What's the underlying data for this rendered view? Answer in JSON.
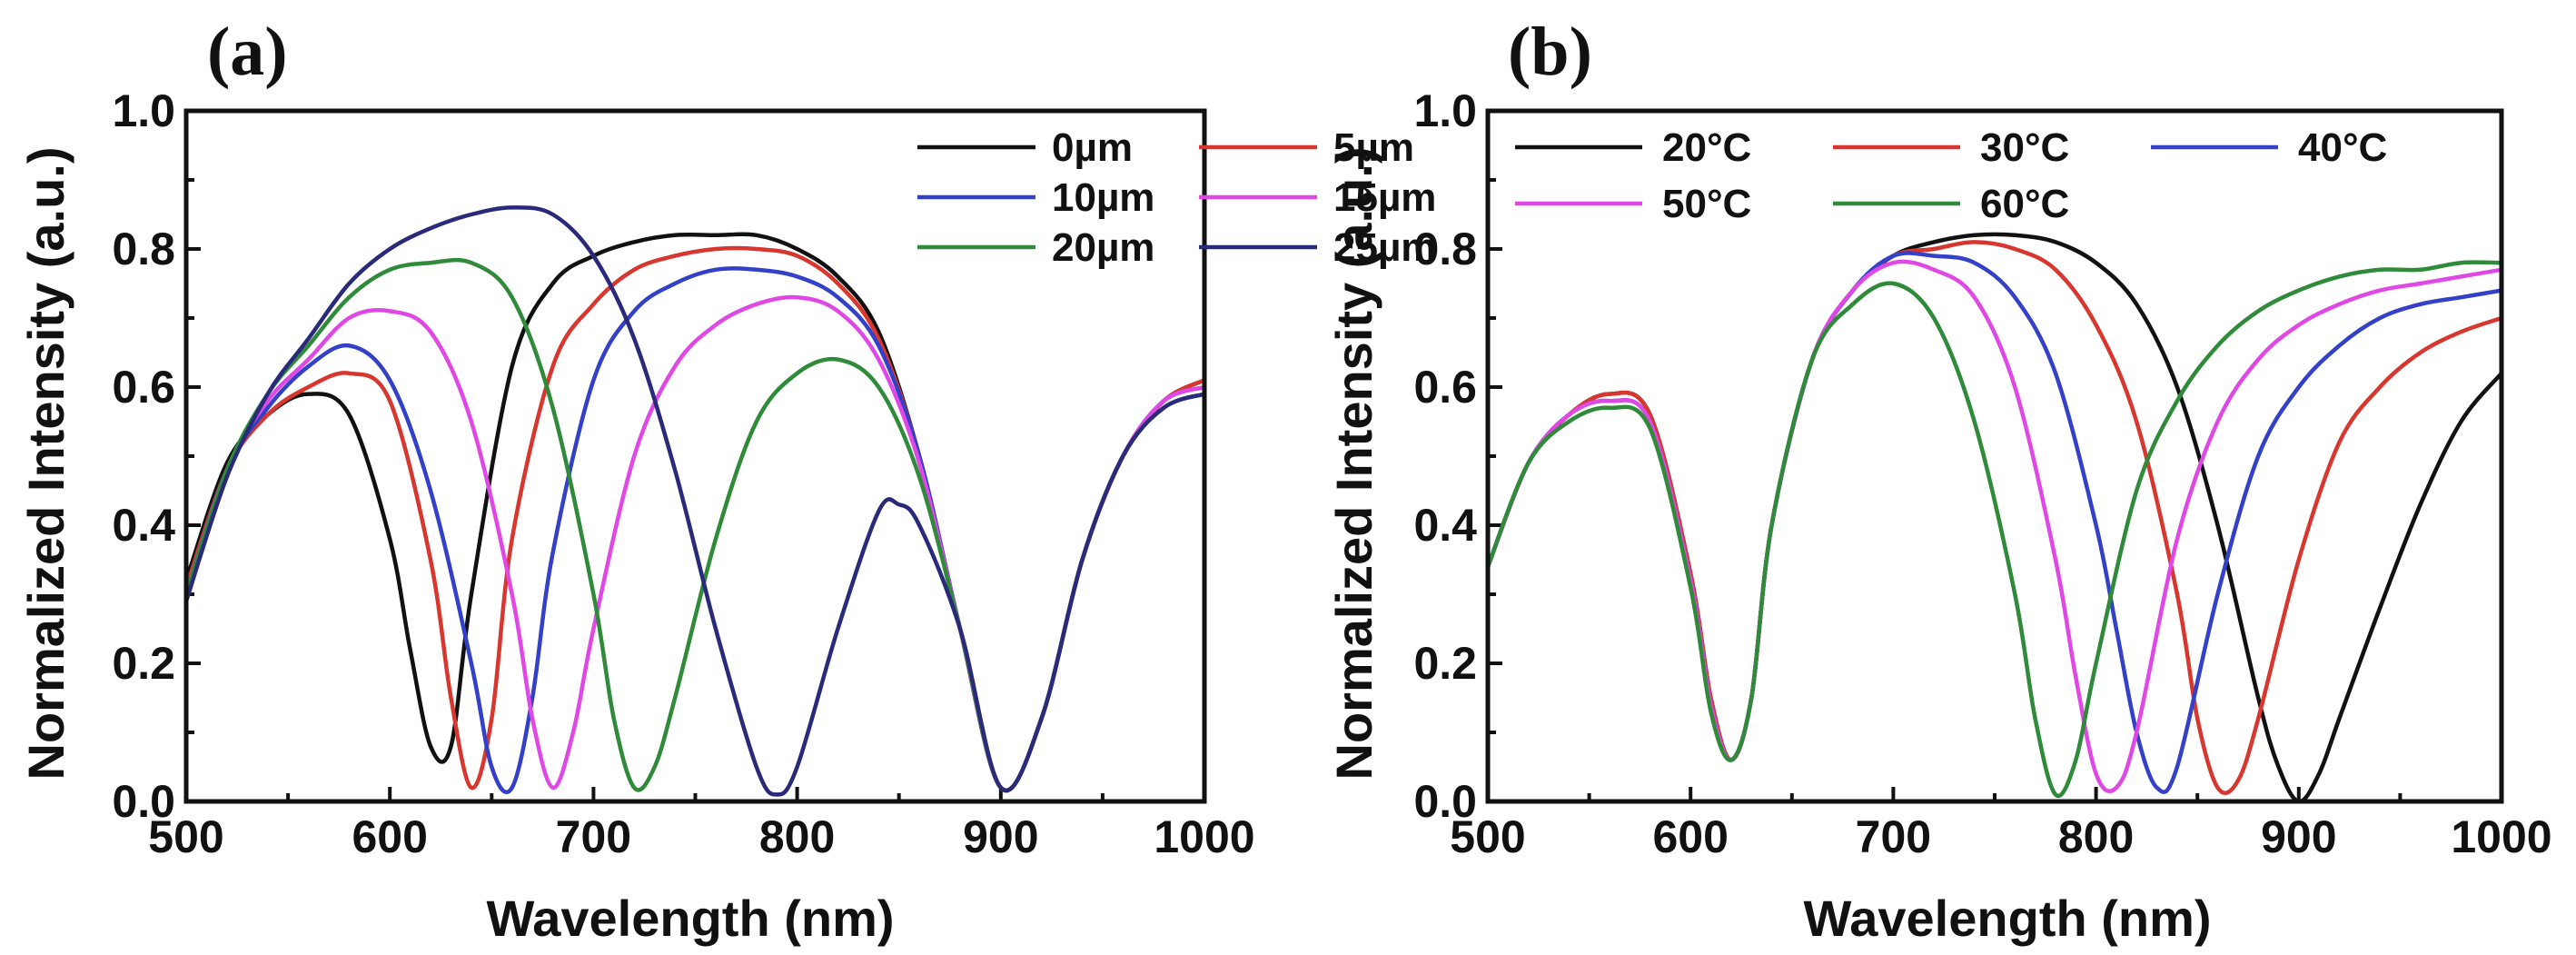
{
  "chart_data": [
    {
      "type": "line",
      "panel_label": "(a)",
      "xlabel": "Wavelength (nm)",
      "ylabel": "Normalized Intensity (a.u.)",
      "xlim": [
        500,
        1000
      ],
      "ylim": [
        0,
        1.0
      ],
      "xticks": [
        "500",
        "600",
        "700",
        "800",
        "900",
        "1000"
      ],
      "yticks": [
        "0.0",
        "0.2",
        "0.4",
        "0.6",
        "0.8",
        "1.0"
      ],
      "legend_position": "top-right",
      "series": [
        {
          "name": "0µm",
          "color": "#111111",
          "x": [
            500,
            520,
            540,
            560,
            580,
            600,
            610,
            620,
            630,
            640,
            660,
            680,
            700,
            720,
            740,
            760,
            780,
            800,
            820,
            840,
            860,
            880,
            900,
            920,
            940,
            960,
            980,
            1000
          ],
          "y": [
            0.32,
            0.49,
            0.56,
            0.59,
            0.56,
            0.38,
            0.22,
            0.08,
            0.08,
            0.3,
            0.63,
            0.75,
            0.79,
            0.81,
            0.82,
            0.82,
            0.82,
            0.8,
            0.76,
            0.68,
            0.5,
            0.25,
            0.02,
            0.12,
            0.35,
            0.5,
            0.58,
            0.61
          ]
        },
        {
          "name": "5µm",
          "color": "#d7372e",
          "x": [
            500,
            520,
            540,
            560,
            580,
            600,
            620,
            630,
            640,
            650,
            660,
            680,
            700,
            720,
            740,
            760,
            780,
            800,
            820,
            840,
            860,
            880,
            900,
            920,
            940,
            960,
            980,
            1000
          ],
          "y": [
            0.31,
            0.48,
            0.56,
            0.6,
            0.62,
            0.58,
            0.35,
            0.15,
            0.02,
            0.12,
            0.38,
            0.63,
            0.72,
            0.77,
            0.79,
            0.8,
            0.8,
            0.79,
            0.75,
            0.67,
            0.5,
            0.25,
            0.02,
            0.12,
            0.35,
            0.5,
            0.58,
            0.61
          ]
        },
        {
          "name": "10µm",
          "color": "#3340c8",
          "x": [
            500,
            520,
            540,
            560,
            580,
            600,
            620,
            640,
            650,
            660,
            670,
            680,
            700,
            720,
            740,
            760,
            780,
            800,
            820,
            840,
            860,
            880,
            900,
            920,
            940,
            960,
            980,
            1000
          ],
          "y": [
            0.3,
            0.48,
            0.57,
            0.63,
            0.66,
            0.61,
            0.45,
            0.2,
            0.05,
            0.02,
            0.15,
            0.36,
            0.61,
            0.71,
            0.75,
            0.77,
            0.77,
            0.76,
            0.73,
            0.66,
            0.5,
            0.25,
            0.02,
            0.12,
            0.35,
            0.5,
            0.58,
            0.6
          ]
        },
        {
          "name": "15µm",
          "color": "#e048e6",
          "x": [
            500,
            520,
            540,
            560,
            580,
            600,
            620,
            640,
            660,
            670,
            680,
            690,
            700,
            720,
            740,
            760,
            780,
            800,
            820,
            840,
            860,
            880,
            900,
            920,
            940,
            960,
            980,
            1000
          ],
          "y": [
            0.3,
            0.48,
            0.58,
            0.64,
            0.7,
            0.71,
            0.68,
            0.55,
            0.3,
            0.12,
            0.02,
            0.1,
            0.25,
            0.5,
            0.63,
            0.69,
            0.72,
            0.73,
            0.71,
            0.64,
            0.49,
            0.25,
            0.02,
            0.12,
            0.35,
            0.5,
            0.58,
            0.6
          ]
        },
        {
          "name": "20µm",
          "color": "#2f8a3a",
          "x": [
            500,
            520,
            540,
            560,
            580,
            600,
            620,
            640,
            660,
            680,
            700,
            710,
            720,
            730,
            740,
            760,
            780,
            800,
            820,
            840,
            860,
            880,
            900,
            920,
            940,
            960,
            980,
            1000
          ],
          "y": [
            0.3,
            0.48,
            0.59,
            0.66,
            0.73,
            0.77,
            0.78,
            0.78,
            0.73,
            0.57,
            0.3,
            0.12,
            0.02,
            0.05,
            0.15,
            0.38,
            0.55,
            0.62,
            0.64,
            0.6,
            0.47,
            0.25,
            0.02,
            0.12,
            0.35,
            0.5,
            0.57,
            0.59
          ]
        },
        {
          "name": "25µm",
          "color": "#2a2a7a",
          "x": [
            500,
            520,
            540,
            560,
            580,
            600,
            620,
            640,
            660,
            680,
            700,
            720,
            740,
            760,
            780,
            790,
            800,
            820,
            840,
            850,
            860,
            880,
            900,
            920,
            940,
            960,
            980,
            1000
          ],
          "y": [
            0.29,
            0.47,
            0.59,
            0.67,
            0.75,
            0.8,
            0.83,
            0.85,
            0.86,
            0.85,
            0.79,
            0.67,
            0.48,
            0.25,
            0.05,
            0.01,
            0.05,
            0.25,
            0.42,
            0.43,
            0.4,
            0.25,
            0.02,
            0.12,
            0.35,
            0.5,
            0.57,
            0.59
          ]
        }
      ]
    },
    {
      "type": "line",
      "panel_label": "(b)",
      "xlabel": "Wavelength (nm)",
      "ylabel": "Normalized Intensity (a.u.)",
      "xlim": [
        500,
        1000
      ],
      "ylim": [
        0,
        1.0
      ],
      "xticks": [
        "500",
        "600",
        "700",
        "800",
        "900",
        "1000"
      ],
      "yticks": [
        "0.0",
        "0.2",
        "0.4",
        "0.6",
        "0.8",
        "1.0"
      ],
      "legend_position": "top",
      "series": [
        {
          "name": "20°C",
          "color": "#111111",
          "x": [
            500,
            520,
            540,
            560,
            580,
            600,
            610,
            620,
            630,
            640,
            660,
            680,
            700,
            720,
            740,
            760,
            780,
            800,
            820,
            840,
            860,
            880,
            890,
            900,
            910,
            920,
            940,
            960,
            980,
            1000
          ],
          "y": [
            0.34,
            0.49,
            0.56,
            0.59,
            0.56,
            0.33,
            0.15,
            0.06,
            0.15,
            0.4,
            0.64,
            0.74,
            0.79,
            0.81,
            0.82,
            0.82,
            0.81,
            0.78,
            0.72,
            0.6,
            0.4,
            0.15,
            0.05,
            0.0,
            0.04,
            0.12,
            0.28,
            0.43,
            0.55,
            0.62
          ]
        },
        {
          "name": "30°C",
          "color": "#d7372e",
          "x": [
            500,
            520,
            540,
            560,
            580,
            600,
            610,
            620,
            630,
            640,
            660,
            680,
            700,
            720,
            740,
            760,
            780,
            800,
            820,
            840,
            850,
            860,
            870,
            880,
            900,
            920,
            940,
            960,
            980,
            1000
          ],
          "y": [
            0.34,
            0.49,
            0.56,
            0.59,
            0.56,
            0.33,
            0.15,
            0.06,
            0.15,
            0.4,
            0.64,
            0.74,
            0.79,
            0.8,
            0.81,
            0.8,
            0.77,
            0.69,
            0.55,
            0.3,
            0.12,
            0.02,
            0.03,
            0.12,
            0.35,
            0.52,
            0.6,
            0.65,
            0.68,
            0.7
          ]
        },
        {
          "name": "40°C",
          "color": "#3340c8",
          "x": [
            500,
            520,
            540,
            560,
            580,
            600,
            610,
            620,
            630,
            640,
            660,
            680,
            700,
            720,
            740,
            760,
            780,
            800,
            810,
            820,
            830,
            840,
            860,
            880,
            900,
            920,
            940,
            960,
            980,
            1000
          ],
          "y": [
            0.34,
            0.49,
            0.56,
            0.58,
            0.55,
            0.32,
            0.14,
            0.06,
            0.15,
            0.4,
            0.64,
            0.74,
            0.79,
            0.79,
            0.78,
            0.73,
            0.62,
            0.4,
            0.25,
            0.1,
            0.02,
            0.05,
            0.3,
            0.5,
            0.6,
            0.66,
            0.7,
            0.72,
            0.73,
            0.74
          ]
        },
        {
          "name": "50°C",
          "color": "#e048e6",
          "x": [
            500,
            520,
            540,
            560,
            580,
            600,
            610,
            620,
            630,
            640,
            660,
            680,
            700,
            720,
            740,
            760,
            780,
            790,
            800,
            810,
            820,
            840,
            860,
            880,
            900,
            920,
            940,
            960,
            980,
            1000
          ],
          "y": [
            0.34,
            0.49,
            0.56,
            0.58,
            0.55,
            0.32,
            0.14,
            0.06,
            0.15,
            0.4,
            0.64,
            0.74,
            0.78,
            0.77,
            0.73,
            0.6,
            0.35,
            0.18,
            0.04,
            0.02,
            0.1,
            0.38,
            0.55,
            0.64,
            0.69,
            0.72,
            0.74,
            0.75,
            0.76,
            0.77
          ]
        },
        {
          "name": "60°C",
          "color": "#2f8a3a",
          "x": [
            500,
            520,
            540,
            560,
            580,
            600,
            610,
            620,
            630,
            640,
            660,
            680,
            700,
            720,
            740,
            760,
            770,
            780,
            790,
            800,
            820,
            840,
            860,
            880,
            900,
            920,
            940,
            960,
            980,
            1000
          ],
          "y": [
            0.34,
            0.49,
            0.55,
            0.57,
            0.54,
            0.31,
            0.13,
            0.06,
            0.15,
            0.4,
            0.64,
            0.72,
            0.75,
            0.7,
            0.55,
            0.3,
            0.12,
            0.01,
            0.06,
            0.2,
            0.45,
            0.58,
            0.66,
            0.71,
            0.74,
            0.76,
            0.77,
            0.77,
            0.78,
            0.78
          ]
        }
      ]
    }
  ]
}
